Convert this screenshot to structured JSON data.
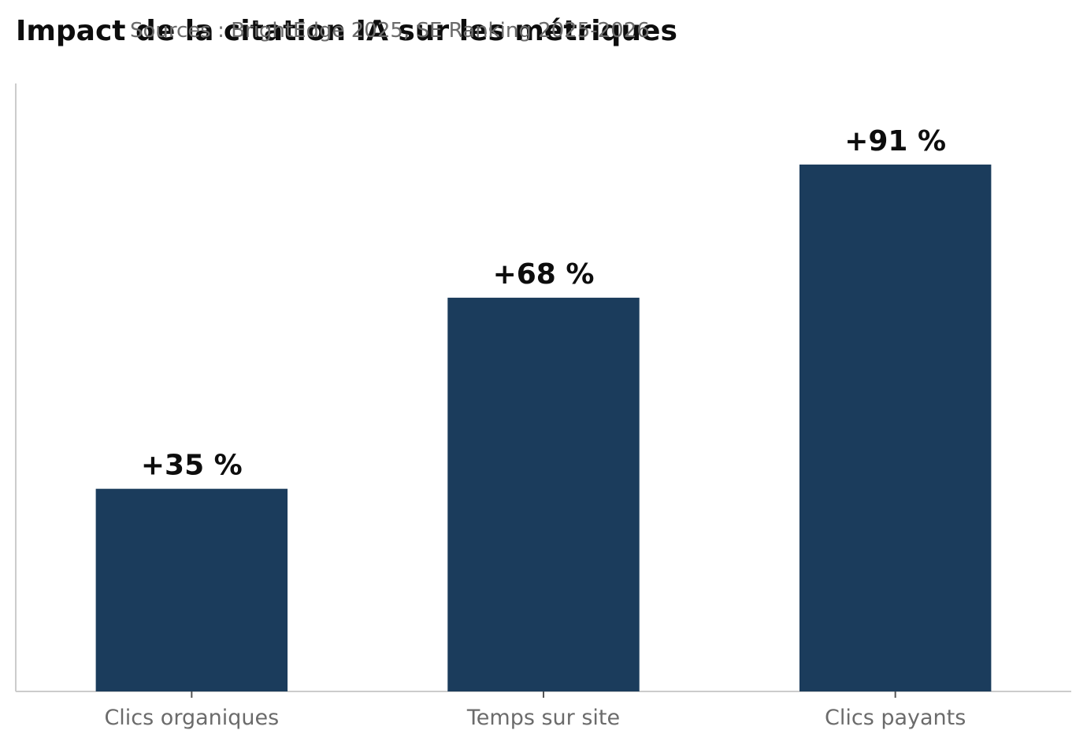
{
  "chart_data": {
    "type": "bar",
    "title": "Impact de la citation IA sur les métriques",
    "subtitle": "Sources : BrightEdge 2025, SE Ranking 2025-2026",
    "xlabel": "",
    "ylabel": "",
    "categories": [
      "Clics organiques",
      "Temps sur site",
      "Clics payants"
    ],
    "values": [
      35,
      68,
      91
    ],
    "data_labels": [
      "+35 %",
      "+68 %",
      "+91 %"
    ],
    "ylim": [
      0,
      105
    ],
    "grid": false,
    "bar_color": "#1b3c5c",
    "axis_color": "#cccccc"
  }
}
